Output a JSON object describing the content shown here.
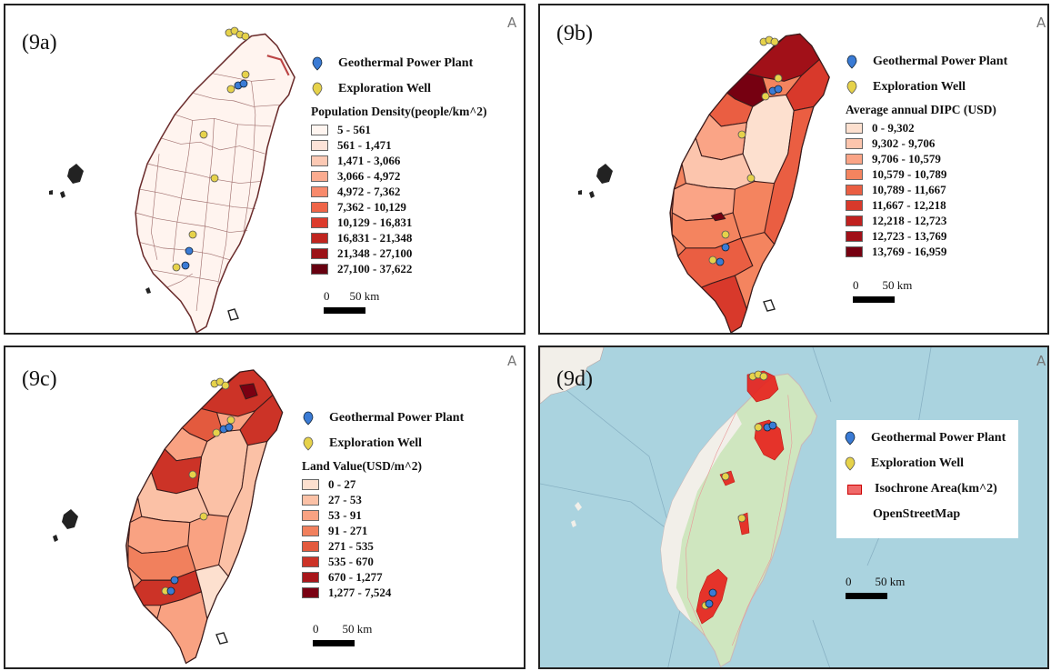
{
  "panels": {
    "a": {
      "label": "(9a)",
      "marker_plant": "Geothermal Power Plant",
      "marker_well": "Exploration Well",
      "legend_title": "Population Density(people/km^2)",
      "classes": [
        "5 - 561",
        "561 - 1,471",
        "1,471 - 3,066",
        "3,066 - 4,972",
        "4,972 - 7,362",
        "7,362 - 10,129",
        "10,129 - 16,831",
        "16,831 - 21,348",
        "21,348 - 27,100",
        "27,100 - 37,622"
      ],
      "colors": [
        "#fff5f0",
        "#fde3d8",
        "#fcc9b4",
        "#fbab8f",
        "#f88a6c",
        "#ef6548",
        "#dc3b2c",
        "#c0251f",
        "#9c1318",
        "#670010"
      ],
      "scale_start": "0",
      "scale_end": "50 km"
    },
    "b": {
      "label": "(9b)",
      "marker_plant": "Geothermal Power Plant",
      "marker_well": "Exploration Well",
      "legend_title": "Average annual DIPC (USD)",
      "classes": [
        "0 - 9,302",
        "9,302 - 9,706",
        "9,706 - 10,579",
        "10,579 - 10,789",
        "10,789 - 11,667",
        "11,667 - 12,218",
        "12,218 - 12,723",
        "12,723 - 13,769",
        "13,769 - 16,959"
      ],
      "colors": [
        "#fde0cf",
        "#fcc5ad",
        "#faa486",
        "#f4845f",
        "#ea5e42",
        "#d8392b",
        "#c0211f",
        "#a11018",
        "#760011"
      ],
      "scale_start": "0",
      "scale_end": "50 km"
    },
    "c": {
      "label": "(9c)",
      "marker_plant": "Geothermal Power Plant",
      "marker_well": "Exploration Well",
      "legend_title": "Land Value(USD/m^2)",
      "classes": [
        "0 - 27",
        "27 - 53",
        "53 - 91",
        "91 - 271",
        "271 - 535",
        "535 - 670",
        "670 - 1,277",
        "1,277 - 7,524"
      ],
      "colors": [
        "#fde0cf",
        "#fbc1a6",
        "#f9a282",
        "#f1805d",
        "#e35a3e",
        "#cc3327",
        "#a8161b",
        "#7a0012"
      ],
      "scale_start": "0",
      "scale_end": "50 km"
    },
    "d": {
      "label": "(9d)",
      "marker_plant": "Geothermal Power Plant",
      "marker_well": "Exploration Well",
      "iso_label": "Isochrone Area(km^2)",
      "osm_label": "OpenStreetMap",
      "scale_start": "0",
      "scale_end": "50 km"
    }
  },
  "north_symbol": "A"
}
